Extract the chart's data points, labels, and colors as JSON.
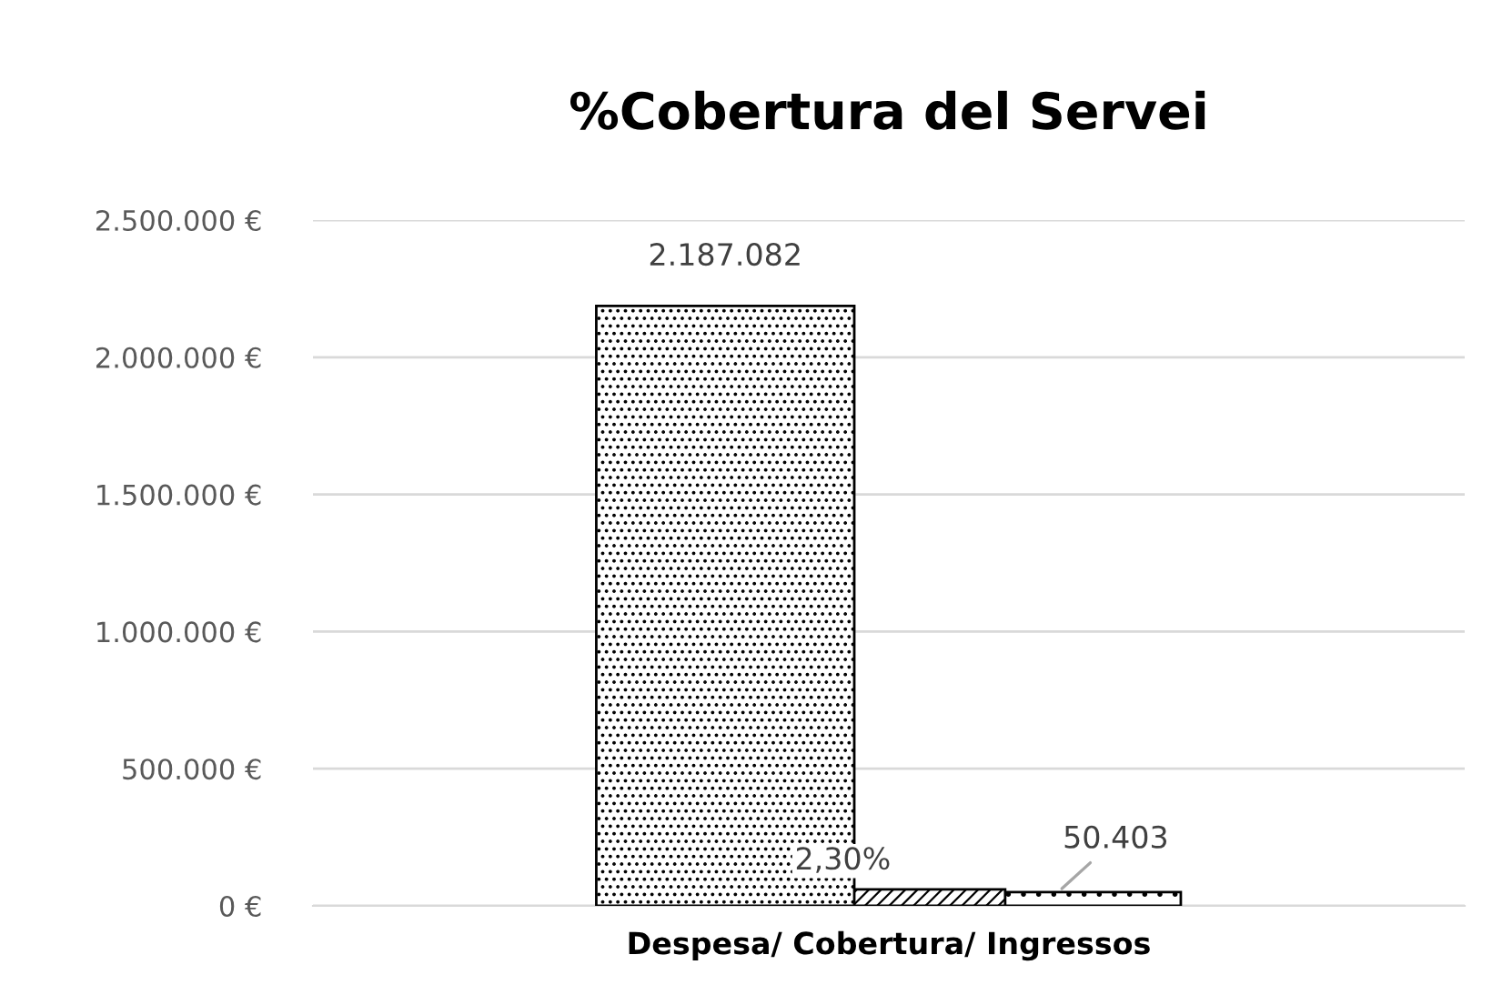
{
  "chart_data": {
    "type": "bar",
    "title": "%Cobertura del Servei",
    "categories": [
      "Despesa/ Cobertura/ Ingressos"
    ],
    "series": [
      {
        "color": "#000000",
        "values": [
          2187082
        ],
        "value_labels": [
          "2.187.082"
        ]
      },
      {
        "color": "#000000",
        "values": [
          60000
        ]
      },
      {
        "color": "#000000",
        "values": [
          50403
        ],
        "value_labels": [
          "50.403"
        ]
      }
    ],
    "ylim": [
      0,
      2500000
    ],
    "yticks": [
      {
        "value": 0,
        "label": "0 €"
      },
      {
        "value": 500000,
        "label": "500.000 €"
      },
      {
        "value": 1000000,
        "label": "1.000.000 €"
      },
      {
        "value": 1500000,
        "label": "1.500.000 €"
      },
      {
        "value": 2000000,
        "label": "2.000.000 €"
      },
      {
        "value": 2500000,
        "label": "2.500.000 €"
      }
    ],
    "annotations": [
      {
        "text": "2,30%",
        "x": "Despesa/ Cobertura/ Ingressos",
        "y": 60000
      }
    ],
    "grid": "y",
    "legend": false
  }
}
